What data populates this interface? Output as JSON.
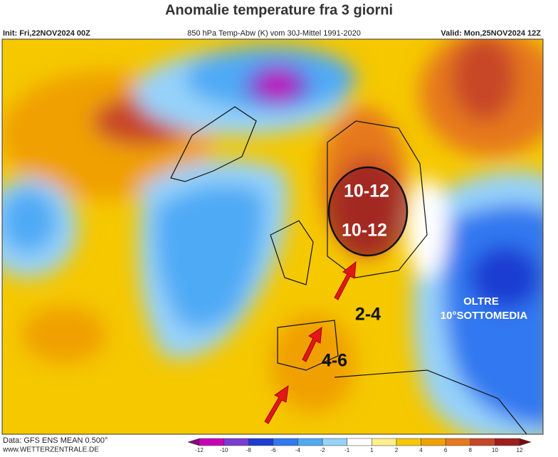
{
  "header": {
    "title": "Anomalie temperature fra 3 giorni",
    "init": "Init: Fri,22NOV2024 00Z",
    "description": "850 hPa Temp-Abw (K) vom 30J-Mittel 1991-2020",
    "valid": "Valid: Mon,25NOV2024 12Z"
  },
  "annotations": {
    "north_core": "10-12",
    "south_core": "10-12",
    "alps": "2-4",
    "iberia": "4-6",
    "east": [
      "OLTRE",
      "10°SOTTOMEDIA"
    ]
  },
  "footer": {
    "data": "Data: GFS ENS MEAN 0.500°",
    "site": "www.WETTERZENTRALE.DE"
  },
  "colorbar": {
    "ticks": [
      -12,
      -10,
      -8,
      -6,
      -4,
      -2,
      -1,
      1,
      2,
      4,
      6,
      8,
      10,
      12
    ],
    "colors": [
      "#8a0080",
      "#c800b4",
      "#7a3cd2",
      "#1e3cd2",
      "#3278f0",
      "#50aaf5",
      "#96d2fa",
      "#ffffff",
      "#fff08c",
      "#f5c800",
      "#f0a000",
      "#e6781e",
      "#c84628",
      "#a01e1e",
      "#7a0a14"
    ]
  }
}
